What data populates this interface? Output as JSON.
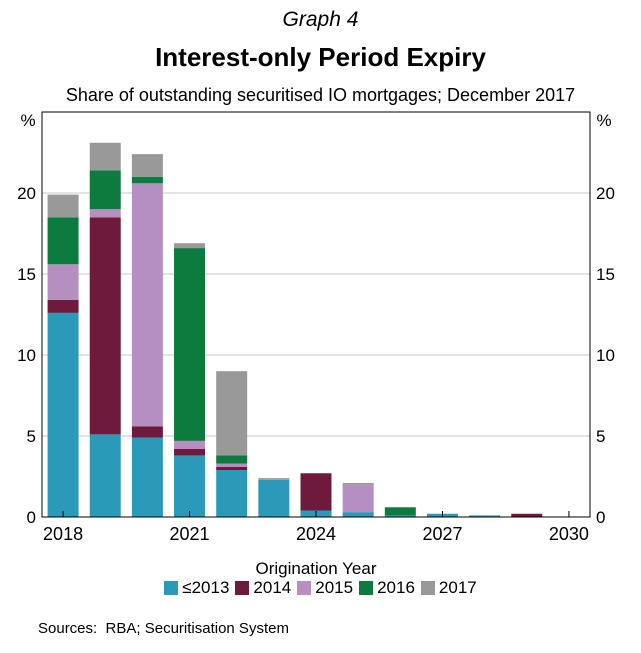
{
  "graph_number": "Graph 4",
  "sources_label": "Sources:",
  "sources_text": "RBA; Securitisation System",
  "colors": {
    "le2013": "#2b9ab8",
    "y2014": "#6d1a3d",
    "y2015": "#b48fbf",
    "y2016": "#0c7b3d",
    "y2017": "#999999"
  },
  "chart_data": {
    "type": "bar",
    "stacked": true,
    "title": "Interest-only Period Expiry",
    "subtitle": "Share of outstanding securitised IO mortgages; December 2017",
    "xlabel": "Origination Year",
    "ylabel_left": "%",
    "ylabel_right": "%",
    "ylim": [
      0,
      25
    ],
    "yticks": [
      0,
      5,
      10,
      15,
      20
    ],
    "xticks": [
      "2018",
      "2021",
      "2024",
      "2027",
      "2030"
    ],
    "categories": [
      "2018",
      "2019",
      "2020",
      "2021",
      "2022",
      "2023",
      "2024",
      "2025",
      "2026",
      "2027",
      "2028",
      "2029",
      "2030"
    ],
    "grid": true,
    "series": [
      {
        "name": "≤2013",
        "values": [
          12.6,
          5.1,
          4.9,
          3.8,
          2.9,
          2.3,
          0.4,
          0.3,
          0.1,
          0.2,
          0.1,
          0.0,
          0.0
        ]
      },
      {
        "name": "2014",
        "values": [
          0.8,
          13.4,
          0.7,
          0.4,
          0.2,
          0.0,
          2.3,
          0.0,
          0.0,
          0.0,
          0.0,
          0.2,
          0.0
        ]
      },
      {
        "name": "2015",
        "values": [
          2.2,
          0.5,
          15.0,
          0.5,
          0.2,
          0.0,
          0.0,
          1.7,
          0.0,
          0.0,
          0.0,
          0.0,
          0.0
        ]
      },
      {
        "name": "2016",
        "values": [
          2.9,
          2.4,
          0.4,
          11.9,
          0.5,
          0.0,
          0.0,
          0.0,
          0.5,
          0.0,
          0.0,
          0.0,
          0.0
        ]
      },
      {
        "name": "2017",
        "values": [
          1.4,
          1.7,
          1.4,
          0.3,
          5.2,
          0.1,
          0.0,
          0.1,
          0.0,
          0.0,
          0.0,
          0.0,
          0.0
        ]
      }
    ]
  }
}
